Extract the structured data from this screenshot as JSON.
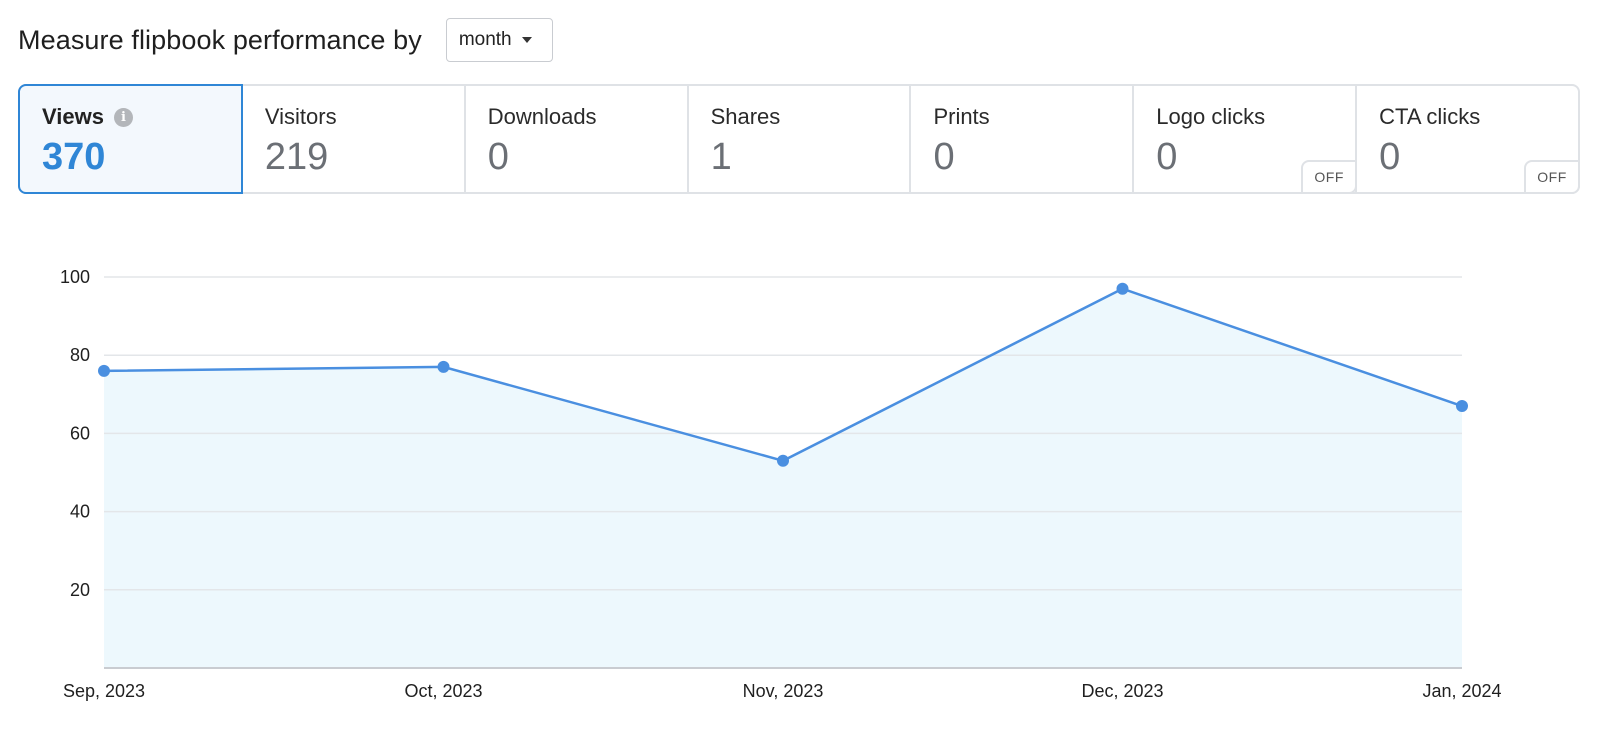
{
  "header": {
    "title": "Measure flipbook performance by",
    "period_select": {
      "value": "month"
    }
  },
  "metrics": [
    {
      "id": "views",
      "label": "Views",
      "value": "370",
      "active": true,
      "info": true
    },
    {
      "id": "visitors",
      "label": "Visitors",
      "value": "219"
    },
    {
      "id": "downloads",
      "label": "Downloads",
      "value": "0"
    },
    {
      "id": "shares",
      "label": "Shares",
      "value": "1"
    },
    {
      "id": "prints",
      "label": "Prints",
      "value": "0"
    },
    {
      "id": "logo-clicks",
      "label": "Logo clicks",
      "value": "0",
      "toggle": "OFF"
    },
    {
      "id": "cta-clicks",
      "label": "CTA clicks",
      "value": "0",
      "toggle": "OFF"
    }
  ],
  "colors": {
    "accent": "#2f86d6",
    "line": "#4a8fe0",
    "area": "#edf8fd",
    "grid": "#e3e6e9"
  },
  "chart_data": {
    "type": "area",
    "categories": [
      "Sep, 2023",
      "Oct, 2023",
      "Nov, 2023",
      "Dec, 2023",
      "Jan, 2024"
    ],
    "values": [
      76,
      77,
      53,
      97,
      67
    ],
    "y_ticks": [
      20,
      40,
      60,
      80,
      100
    ],
    "ylim": [
      0,
      100
    ],
    "grid": true,
    "legend": "none"
  }
}
